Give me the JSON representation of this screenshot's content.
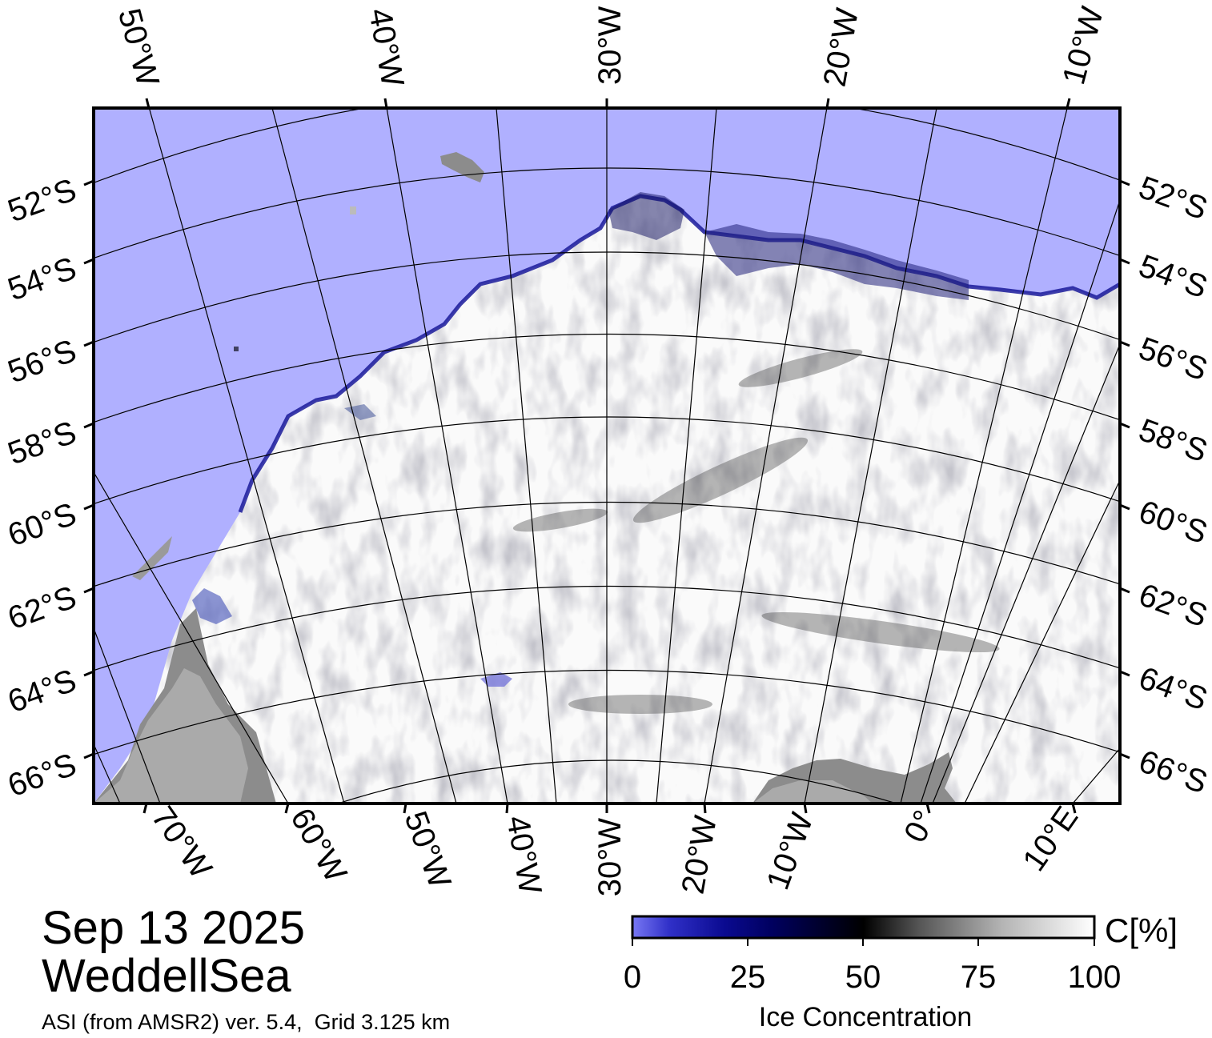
{
  "map": {
    "date": "Sep 13 2025",
    "region": "WeddellSea",
    "source": "ASI (from AMSR2) ver. 5.4,  Grid 3.125 km",
    "colors": {
      "ocean": "#B0B0FF",
      "ice_max": "#FFFFFF",
      "land_dark": "#8C8C8C",
      "land_light": "#AAAAAA",
      "frame": "#000000"
    },
    "top_lon_labels": [
      "50°W",
      "40°W",
      "30°W",
      "20°W",
      "10°W"
    ],
    "left_lat_labels": [
      "52°S",
      "54°S",
      "56°S",
      "58°S",
      "60°S",
      "62°S",
      "64°S",
      "66°S"
    ],
    "right_lat_labels": [
      "52°S",
      "54°S",
      "56°S",
      "58°S",
      "60°S",
      "62°S",
      "64°S",
      "66°S"
    ],
    "bottom_lon_labels": [
      "70°W",
      "60°W",
      "50°W",
      "40°W",
      "30°W",
      "20°W",
      "10°W",
      "0°",
      "10°E"
    ]
  },
  "colorbar": {
    "ticks": [
      "0",
      "25",
      "50",
      "75",
      "100"
    ],
    "unit": "C[%]",
    "title": "Ice Concentration",
    "stops": [
      {
        "value": 0,
        "color": "#7878F4"
      },
      {
        "value": 25,
        "color": "#000070"
      },
      {
        "value": 50,
        "color": "#000000"
      },
      {
        "value": 75,
        "color": "#A8A8A8"
      },
      {
        "value": 100,
        "color": "#FFFFFF"
      }
    ]
  }
}
